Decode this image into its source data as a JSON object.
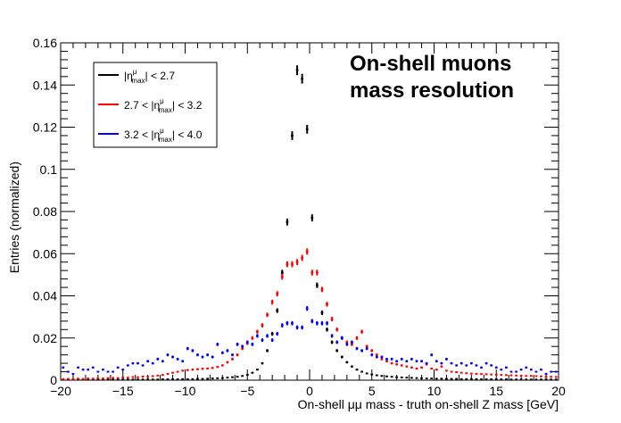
{
  "chart_data": {
    "type": "scatter",
    "title_lines": [
      "On-shell muons",
      "mass resolution"
    ],
    "xlabel": "On-shell μμ mass - truth on-shell Z mass [GeV]",
    "ylabel": "Entries (normalized)",
    "xlim": [
      -20,
      20
    ],
    "ylim": [
      0,
      0.16
    ],
    "x_ticks": [
      -20,
      -15,
      -10,
      -5,
      0,
      5,
      10,
      15,
      20
    ],
    "x_tick_labels": [
      "−20",
      "−15",
      "−10",
      "−5",
      "0",
      "5",
      "10",
      "15",
      "20"
    ],
    "y_ticks": [
      0,
      0.02,
      0.04,
      0.06,
      0.08,
      0.1,
      0.12,
      0.14,
      0.16
    ],
    "y_tick_labels": [
      "0",
      "0.02",
      "0.04",
      "0.06",
      "0.08",
      "0.1",
      "0.12",
      "0.14",
      "0.16"
    ],
    "bin_width": 0.4,
    "legend_position": "top-left",
    "series": [
      {
        "name": "|ηᵘmax| < 2.7",
        "legend_parts": [
          "|η",
          "μ",
          "max",
          "| < 2.7"
        ],
        "color": "#000000",
        "x": [
          -19.8,
          -19.4,
          -19.0,
          -18.6,
          -18.2,
          -17.8,
          -17.4,
          -17.0,
          -16.6,
          -16.2,
          -15.8,
          -15.4,
          -15.0,
          -14.6,
          -14.2,
          -13.8,
          -13.4,
          -13.0,
          -12.6,
          -12.2,
          -11.8,
          -11.4,
          -11.0,
          -10.6,
          -10.2,
          -9.8,
          -9.4,
          -9.0,
          -8.6,
          -8.2,
          -7.8,
          -7.4,
          -7.0,
          -6.6,
          -6.2,
          -5.8,
          -5.4,
          -5.0,
          -4.6,
          -4.2,
          -3.8,
          -3.4,
          -3.0,
          -2.6,
          -2.2,
          -1.8,
          -1.4,
          -1.0,
          -0.6,
          -0.2,
          0.2,
          0.6,
          1.0,
          1.4,
          1.8,
          2.2,
          2.6,
          3.0,
          3.4,
          3.8,
          4.2,
          4.6,
          5.0,
          5.4,
          5.8,
          6.2,
          6.6,
          7.0,
          7.4,
          7.8,
          8.2,
          8.6,
          9.0,
          9.4,
          9.8,
          10.2,
          10.6,
          11.0,
          11.4,
          11.8,
          12.2,
          12.6,
          13.0,
          13.4,
          13.8,
          14.2,
          14.6,
          15.0,
          15.4,
          15.8,
          16.2,
          16.6,
          17.0,
          17.4,
          17.8,
          18.2,
          18.6,
          19.0,
          19.4,
          19.8
        ],
        "y": [
          0.0003,
          0.0003,
          0.0003,
          0.0003,
          0.0003,
          0.0003,
          0.0003,
          0.0003,
          0.0003,
          0.0003,
          0.0003,
          0.0003,
          0.0003,
          0.0003,
          0.0003,
          0.0003,
          0.0003,
          0.0003,
          0.0003,
          0.0003,
          0.0004,
          0.0004,
          0.0004,
          0.0004,
          0.0005,
          0.0005,
          0.0005,
          0.0006,
          0.0006,
          0.0007,
          0.0008,
          0.0009,
          0.001,
          0.0012,
          0.0014,
          0.0016,
          0.002,
          0.0025,
          0.0035,
          0.005,
          0.008,
          0.014,
          0.022,
          0.033,
          0.051,
          0.075,
          0.116,
          0.147,
          0.143,
          0.119,
          0.077,
          0.045,
          0.032,
          0.024,
          0.018,
          0.014,
          0.011,
          0.0085,
          0.0065,
          0.005,
          0.004,
          0.0032,
          0.0027,
          0.0023,
          0.002,
          0.0018,
          0.0016,
          0.0014,
          0.0013,
          0.0012,
          0.0011,
          0.001,
          0.0009,
          0.0008,
          0.0008,
          0.0007,
          0.0007,
          0.0006,
          0.0006,
          0.0006,
          0.0005,
          0.0005,
          0.0005,
          0.0005,
          0.0004,
          0.0004,
          0.0004,
          0.0004,
          0.0004,
          0.0004,
          0.0003,
          0.0003,
          0.0003,
          0.0003,
          0.0003,
          0.0003,
          0.0003,
          0.0003,
          0.0003,
          0.0003
        ]
      },
      {
        "name": "2.7 < |ηᵘmax| < 3.2",
        "legend_parts": [
          "2.7 < |η",
          "μ",
          "max",
          "| < 3.2"
        ],
        "color": "#ff0000",
        "x": [
          -19.8,
          -19.4,
          -19.0,
          -18.6,
          -18.2,
          -17.8,
          -17.4,
          -17.0,
          -16.6,
          -16.2,
          -15.8,
          -15.4,
          -15.0,
          -14.6,
          -14.2,
          -13.8,
          -13.4,
          -13.0,
          -12.6,
          -12.2,
          -11.8,
          -11.4,
          -11.0,
          -10.6,
          -10.2,
          -9.8,
          -9.4,
          -9.0,
          -8.6,
          -8.2,
          -7.8,
          -7.4,
          -7.0,
          -6.6,
          -6.2,
          -5.8,
          -5.4,
          -5.0,
          -4.6,
          -4.2,
          -3.8,
          -3.4,
          -3.0,
          -2.6,
          -2.2,
          -1.8,
          -1.4,
          -1.0,
          -0.6,
          -0.2,
          0.2,
          0.6,
          1.0,
          1.4,
          1.8,
          2.2,
          2.6,
          3.0,
          3.4,
          3.8,
          4.2,
          4.6,
          5.0,
          5.4,
          5.8,
          6.2,
          6.6,
          7.0,
          7.4,
          7.8,
          8.2,
          8.6,
          9.0,
          9.4,
          9.8,
          10.2,
          10.6,
          11.0,
          11.4,
          11.8,
          12.2,
          12.6,
          13.0,
          13.4,
          13.8,
          14.2,
          14.6,
          15.0,
          15.4,
          15.8,
          16.2,
          16.6,
          17.0,
          17.4,
          17.8,
          18.2,
          18.6,
          19.0,
          19.4,
          19.8
        ],
        "y": [
          0.0005,
          0.0006,
          0.0005,
          0.0007,
          0.0006,
          0.0008,
          0.0007,
          0.0009,
          0.0008,
          0.001,
          0.0011,
          0.001,
          0.0013,
          0.0012,
          0.0015,
          0.0014,
          0.0017,
          0.0016,
          0.0019,
          0.0022,
          0.0025,
          0.003,
          0.0035,
          0.004,
          0.0045,
          0.0048,
          0.005,
          0.0052,
          0.0054,
          0.0055,
          0.0058,
          0.0063,
          0.007,
          0.0085,
          0.01,
          0.012,
          0.015,
          0.0175,
          0.02,
          0.023,
          0.026,
          0.031,
          0.037,
          0.041,
          0.049,
          0.055,
          0.055,
          0.056,
          0.058,
          0.061,
          0.051,
          0.051,
          0.043,
          0.036,
          0.029,
          0.024,
          0.02,
          0.018,
          0.017,
          0.02,
          0.023,
          0.016,
          0.014,
          0.012,
          0.01,
          0.009,
          0.008,
          0.0075,
          0.007,
          0.0065,
          0.006,
          0.0055,
          0.006,
          0.0075,
          0.0055,
          0.005,
          0.0065,
          0.0045,
          0.004,
          0.0038,
          0.0035,
          0.0033,
          0.0031,
          0.003,
          0.0029,
          0.0028,
          0.0027,
          0.0026,
          0.0025,
          0.0024,
          0.0023,
          0.0022,
          0.0021,
          0.002,
          0.002,
          0.0019,
          0.0018,
          0.0017,
          0.0016,
          0.0015
        ]
      },
      {
        "name": "3.2 < |ηᵘmax| < 4.0",
        "legend_parts": [
          "3.2 < |η",
          "μ",
          "max",
          "| < 4.0"
        ],
        "color": "#0000ff",
        "x": [
          -19.8,
          -19.4,
          -19.0,
          -18.6,
          -18.2,
          -17.8,
          -17.4,
          -17.0,
          -16.6,
          -16.2,
          -15.8,
          -15.4,
          -15.0,
          -14.6,
          -14.2,
          -13.8,
          -13.4,
          -13.0,
          -12.6,
          -12.2,
          -11.8,
          -11.4,
          -11.0,
          -10.6,
          -10.2,
          -9.8,
          -9.4,
          -9.0,
          -8.6,
          -8.2,
          -7.8,
          -7.4,
          -7.0,
          -6.6,
          -6.2,
          -5.8,
          -5.4,
          -5.0,
          -4.6,
          -4.2,
          -3.8,
          -3.4,
          -3.0,
          -2.6,
          -2.2,
          -1.8,
          -1.4,
          -1.0,
          -0.6,
          -0.2,
          0.2,
          0.6,
          1.0,
          1.4,
          1.8,
          2.2,
          2.6,
          3.0,
          3.4,
          3.8,
          4.2,
          4.6,
          5.0,
          5.4,
          5.8,
          6.2,
          6.6,
          7.0,
          7.4,
          7.8,
          8.2,
          8.6,
          9.0,
          9.4,
          9.8,
          10.2,
          10.6,
          11.0,
          11.4,
          11.8,
          12.2,
          12.6,
          13.0,
          13.4,
          13.8,
          14.2,
          14.6,
          15.0,
          15.4,
          15.8,
          16.2,
          16.6,
          17.0,
          17.4,
          17.8,
          18.2,
          18.6,
          19.0,
          19.4,
          19.8
        ],
        "y": [
          0.006,
          0.004,
          0.003,
          0.006,
          0.005,
          0.005,
          0.006,
          0.004,
          0.005,
          0.004,
          0.004,
          0.006,
          0.005,
          0.007,
          0.008,
          0.008,
          0.007,
          0.009,
          0.008,
          0.01,
          0.009,
          0.012,
          0.011,
          0.01,
          0.009,
          0.015,
          0.014,
          0.012,
          0.011,
          0.012,
          0.011,
          0.017,
          0.013,
          0.014,
          0.012,
          0.017,
          0.016,
          0.018,
          0.017,
          0.021,
          0.019,
          0.021,
          0.019,
          0.022,
          0.026,
          0.027,
          0.027,
          0.025,
          0.025,
          0.034,
          0.028,
          0.027,
          0.027,
          0.027,
          0.021,
          0.018,
          0.02,
          0.017,
          0.018,
          0.015,
          0.014,
          0.015,
          0.012,
          0.011,
          0.011,
          0.01,
          0.01,
          0.009,
          0.01,
          0.009,
          0.01,
          0.009,
          0.009,
          0.008,
          0.012,
          0.009,
          0.008,
          0.01,
          0.008,
          0.007,
          0.008,
          0.007,
          0.008,
          0.007,
          0.006,
          0.008,
          0.007,
          0.006,
          0.005,
          0.006,
          0.004,
          0.004,
          0.005,
          0.006,
          0.005,
          0.004,
          0.005,
          0.003,
          0.004,
          0.004
        ]
      }
    ]
  }
}
